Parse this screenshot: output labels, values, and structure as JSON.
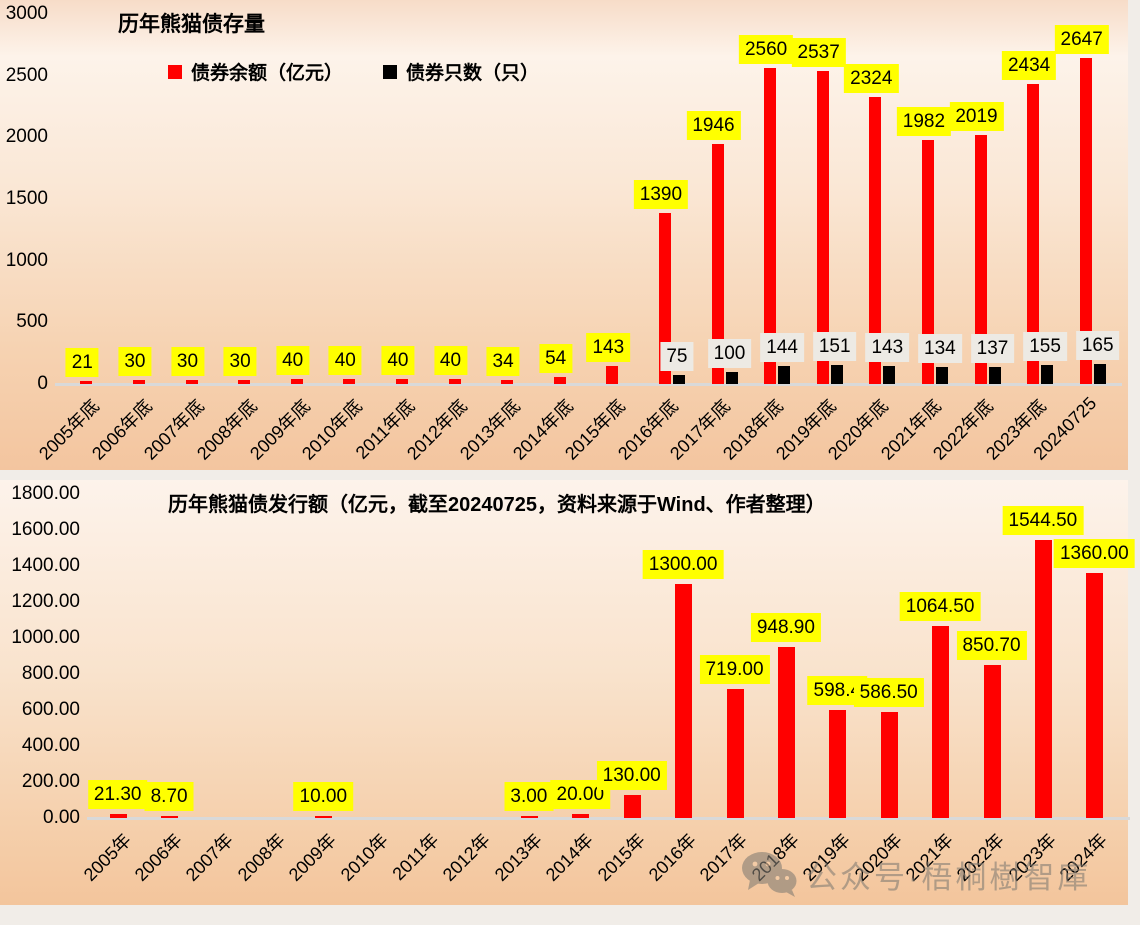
{
  "watermark": {
    "text": "公众号·梧桐樹智庫",
    "icon": "wechat-icon"
  },
  "chart_data": [
    {
      "type": "bar",
      "title": "历年熊猫债存量",
      "legend_position": "top",
      "grid": false,
      "y_axis": {
        "min": 0,
        "max": 3000,
        "step": 500,
        "tick_labels": [
          "3000",
          "2500",
          "2000",
          "1500",
          "1000",
          "500",
          "0"
        ]
      },
      "categories": [
        "2005年底",
        "2006年底",
        "2007年底",
        "2008年底",
        "2009年底",
        "2010年底",
        "2011年底",
        "2012年底",
        "2013年底",
        "2014年底",
        "2015年底",
        "2016年底",
        "2017年底",
        "2018年底",
        "2019年底",
        "2020年底",
        "2021年底",
        "2022年底",
        "2023年底",
        "20240725"
      ],
      "series": [
        {
          "name": "债券余额（亿元）",
          "color": "#ff0000",
          "label_bg": "#ffff00",
          "values": [
            21,
            30,
            30,
            30,
            40,
            40,
            40,
            40,
            34,
            54,
            143,
            1390,
            1946,
            2560,
            2537,
            2324,
            1982,
            2019,
            2434,
            2647
          ],
          "labels": [
            "21",
            "30",
            "30",
            "30",
            "40",
            "40",
            "40",
            "40",
            "34",
            "54",
            "143",
            "1390",
            "1946",
            "2560",
            "2537",
            "2324",
            "1982",
            "2019",
            "2434",
            "2647"
          ]
        },
        {
          "name": "债券只数（只）",
          "color": "#000000",
          "label_bg": "#edeae4",
          "values": [
            null,
            null,
            null,
            null,
            null,
            null,
            null,
            null,
            null,
            null,
            null,
            75,
            100,
            144,
            151,
            143,
            134,
            137,
            155,
            165
          ],
          "labels": [
            "",
            "",
            "",
            "",
            "",
            "",
            "",
            "",
            "",
            "",
            "",
            "75",
            "100",
            "144",
            "151",
            "143",
            "134",
            "137",
            "155",
            "165"
          ]
        }
      ]
    },
    {
      "type": "bar",
      "title": "历年熊猫债发行额（亿元，截至20240725，资料来源于Wind、作者整理）",
      "grid": false,
      "y_axis": {
        "min": 0,
        "max": 1800,
        "step": 200,
        "tick_labels": [
          "1800.00",
          "1600.00",
          "1400.00",
          "1200.00",
          "1000.00",
          "800.00",
          "600.00",
          "400.00",
          "200.00",
          "0.00"
        ]
      },
      "categories": [
        "2005年",
        "2006年",
        "2007年",
        "2008年",
        "2009年",
        "2010年",
        "2011年",
        "2012年",
        "2013年",
        "2014年",
        "2015年",
        "2016年",
        "2017年",
        "2018年",
        "2019年",
        "2020年",
        "2021年",
        "2022年",
        "2023年",
        "2024年"
      ],
      "series": [
        {
          "name": "发行额（亿元）",
          "color": "#ff0000",
          "label_bg": "#ffff00",
          "values": [
            21.3,
            8.7,
            null,
            null,
            10,
            null,
            null,
            null,
            3,
            20,
            130,
            1300,
            719,
            948.9,
            598.4,
            586.5,
            1064.5,
            850.7,
            1544.5,
            1360
          ],
          "labels": [
            "21.30",
            "8.70",
            "",
            "",
            "10.00",
            "",
            "",
            "",
            "3.00",
            "20.00",
            "130.00",
            "1300.00",
            "719.00",
            "948.90",
            "598.4",
            "586.50",
            "1064.50",
            "850.70",
            "1544.50",
            "1360.00"
          ]
        }
      ]
    }
  ]
}
